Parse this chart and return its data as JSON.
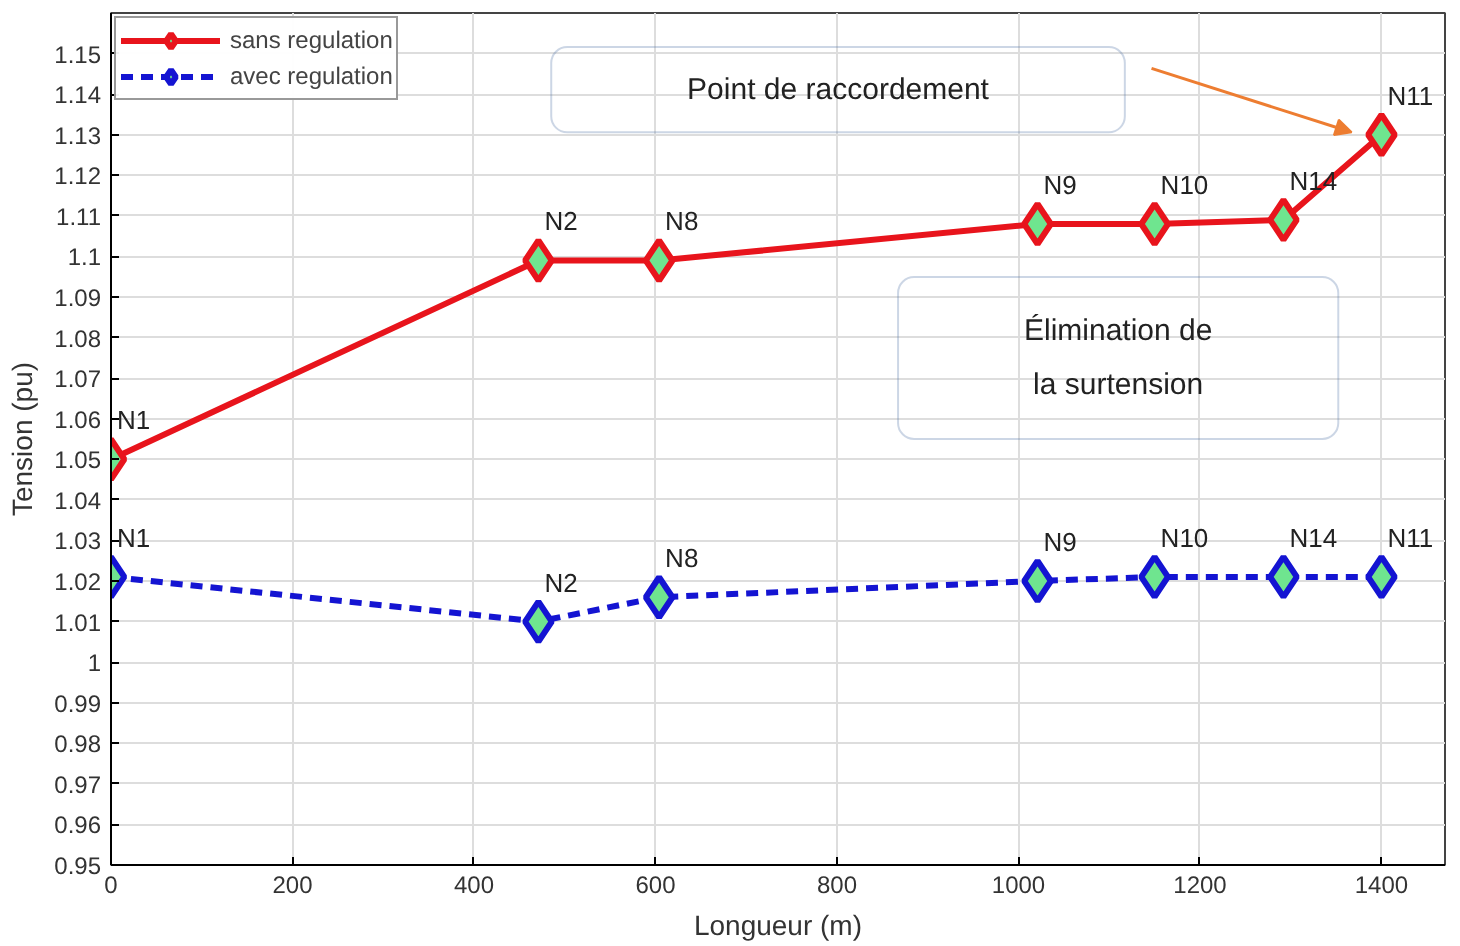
{
  "chart_data": {
    "type": "line",
    "xlabel": "Longueur (m)",
    "ylabel": "Tension (pu)",
    "x": [
      0,
      471,
      604,
      1021,
      1150,
      1292,
      1400
    ],
    "series": [
      {
        "name": "sans regulation",
        "color": "#e8141c",
        "line_style": "solid",
        "values": [
          1.05,
          1.099,
          1.099,
          1.108,
          1.108,
          1.109,
          1.13
        ]
      },
      {
        "name": "avec regulation",
        "color": "#1414d2",
        "line_style": "dashed",
        "values": [
          1.021,
          1.01,
          1.016,
          1.02,
          1.021,
          1.021,
          1.021
        ]
      }
    ],
    "xlim": [
      0,
      1470
    ],
    "ylim": [
      0.95,
      1.16
    ],
    "xticks": [
      0,
      200,
      400,
      600,
      800,
      1000,
      1200,
      1400
    ],
    "yticks": [
      0.95,
      0.96,
      0.97,
      0.98,
      0.99,
      1,
      1.01,
      1.02,
      1.03,
      1.04,
      1.05,
      1.06,
      1.07,
      1.08,
      1.09,
      1.1,
      1.11,
      1.12,
      1.13,
      1.14,
      1.15
    ],
    "marker": "diamond",
    "grid": true,
    "legend": "top left",
    "annotations": [
      {
        "text": "N1",
        "x": 0,
        "y": 1.05
      },
      {
        "text": "N2",
        "x": 471,
        "y": 1.099
      },
      {
        "text": "N8",
        "x": 604,
        "y": 1.099
      },
      {
        "text": "N9",
        "x": 1021,
        "y": 1.108
      },
      {
        "text": "N10",
        "x": 1150,
        "y": 1.108
      },
      {
        "text": "N14",
        "x": 1292,
        "y": 1.109
      },
      {
        "text": "N11",
        "x": 1400,
        "y": 1.13
      },
      {
        "text": "N1",
        "x": 0,
        "y": 1.021
      },
      {
        "text": "N2",
        "x": 471,
        "y": 1.01
      },
      {
        "text": "N8",
        "x": 604,
        "y": 1.016
      },
      {
        "text": "N9",
        "x": 1021,
        "y": 1.02
      },
      {
        "text": "N10",
        "x": 1150,
        "y": 1.021
      },
      {
        "text": "N14",
        "x": 1292,
        "y": 1.021
      },
      {
        "text": "N11",
        "x": 1400,
        "y": 1.021
      },
      "Point de raccordement",
      "Élimination de la surtension"
    ]
  }
}
